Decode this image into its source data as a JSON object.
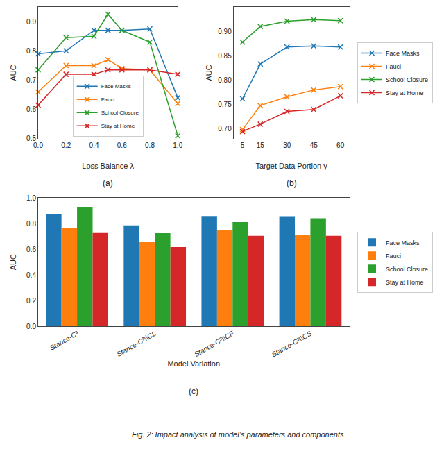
{
  "caption": "Fig. 2: Impact analysis of model’s parameters and components",
  "chart_data": [
    {
      "type": "line",
      "xlabel": "Loss Balance λ",
      "ylabel": "AUC",
      "x": [
        0.0,
        0.2,
        0.4,
        0.5,
        0.6,
        0.8,
        1.0
      ],
      "series": [
        {
          "name": "Face Masks",
          "color": "#1f77b4",
          "values": [
            0.79,
            0.8,
            0.87,
            0.87,
            0.87,
            0.875,
            0.64
          ]
        },
        {
          "name": "Fauci",
          "color": "#ff7f0e",
          "values": [
            0.66,
            0.75,
            0.75,
            0.77,
            0.74,
            0.735,
            0.62
          ]
        },
        {
          "name": "School Closure",
          "color": "#2ca02c",
          "values": [
            0.735,
            0.845,
            0.85,
            0.925,
            0.87,
            0.83,
            0.51
          ]
        },
        {
          "name": "Stay at Home",
          "color": "#d62728",
          "values": [
            0.615,
            0.72,
            0.72,
            0.735,
            0.735,
            0.735,
            0.72
          ]
        }
      ],
      "xlim": [
        0,
        1
      ],
      "xticks": [
        {
          "value": 0,
          "label": "0.0"
        },
        0.2,
        0.4,
        0.6,
        0.8,
        {
          "value": 1,
          "label": "1.0"
        }
      ],
      "ylim": [
        0.5,
        0.95
      ],
      "yticks": [
        0.5,
        0.6,
        0.7,
        0.8,
        0.9
      ],
      "grid": false,
      "legend": "lower center",
      "marker": "x",
      "annotations": [
        "(a)"
      ]
    },
    {
      "type": "line",
      "xlabel": "Target Data Portion γ",
      "ylabel": "AUC",
      "x": [
        5,
        15,
        30,
        45,
        60
      ],
      "series": [
        {
          "name": "Face Masks",
          "color": "#1f77b4",
          "values": [
            0.762,
            0.833,
            0.868,
            0.87,
            0.868
          ]
        },
        {
          "name": "Fauci",
          "color": "#ff7f0e",
          "values": [
            0.699,
            0.748,
            0.766,
            0.78,
            0.787
          ]
        },
        {
          "name": "School Closure",
          "color": "#2ca02c",
          "values": [
            0.878,
            0.91,
            0.921,
            0.924,
            0.922
          ]
        },
        {
          "name": "Stay at Home",
          "color": "#d62728",
          "values": [
            0.695,
            0.71,
            0.736,
            0.74,
            0.768
          ]
        }
      ],
      "xlim": [
        0,
        65
      ],
      "xticks": [
        5,
        15,
        30,
        45,
        60
      ],
      "ylim": [
        0.68,
        0.95
      ],
      "yticks": [
        {
          "value": 0.7,
          "label": "0.70"
        },
        0.75,
        {
          "value": 0.8,
          "label": "0.80"
        },
        0.85,
        {
          "value": 0.9,
          "label": "0.90"
        }
      ],
      "grid": false,
      "legend": "right",
      "marker": "x",
      "annotations": [
        "(b)"
      ]
    },
    {
      "type": "bar",
      "xlabel": "Model Variation",
      "ylabel": "AUC",
      "categories": [
        "Stance-C³",
        "Stance-C³\\\\CL",
        "Stance-C³\\\\CF",
        "Stance-C³\\\\CS"
      ],
      "series": [
        {
          "name": "Face Masks",
          "color": "#1f77b4",
          "values": [
            0.877,
            0.787,
            0.86,
            0.858
          ]
        },
        {
          "name": "Fauci",
          "color": "#ff7f0e",
          "values": [
            0.767,
            0.66,
            0.748,
            0.715
          ]
        },
        {
          "name": "School Closure",
          "color": "#2ca02c",
          "values": [
            0.925,
            0.726,
            0.812,
            0.842
          ]
        },
        {
          "name": "Stay at Home",
          "color": "#d62728",
          "values": [
            0.727,
            0.618,
            0.705,
            0.705
          ]
        }
      ],
      "ylim": [
        0,
        1
      ],
      "yticks": [
        {
          "value": 0,
          "label": "0.0"
        },
        0.2,
        0.4,
        0.6,
        0.8,
        {
          "value": 1,
          "label": "1.0"
        }
      ],
      "grid": false,
      "legend": "right",
      "annotations": [
        "(c)"
      ]
    }
  ]
}
